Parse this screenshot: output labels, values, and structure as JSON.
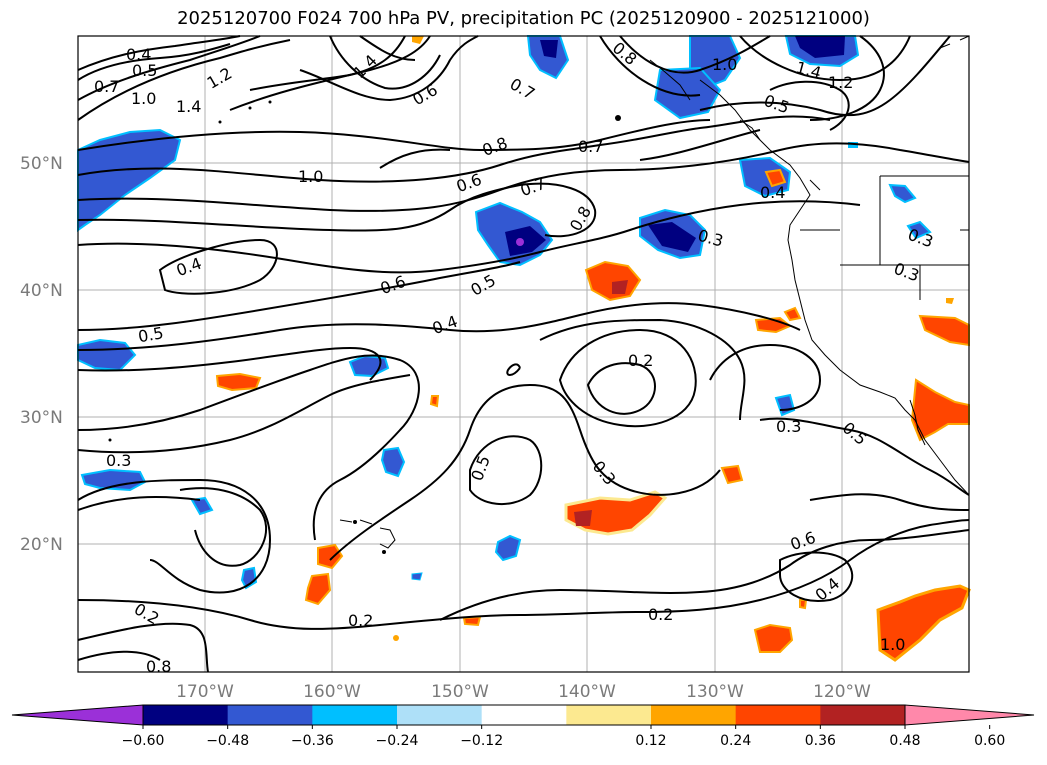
{
  "title": "2025120700 F024 700 hPa PV, precipitation PC (2025120900 - 2025121000)",
  "lat_labels": [
    "50°N",
    "40°N",
    "30°N",
    "20°N"
  ],
  "lon_labels": [
    "170°W",
    "160°W",
    "150°W",
    "140°W",
    "130°W",
    "120°W"
  ],
  "contour_labels": [
    "0.4",
    "0.5",
    "0.7",
    "1.0",
    "1.2",
    "1.4",
    "1.4",
    "0.6",
    "0.7",
    "0.8",
    "0.7",
    "0.6",
    "0.7",
    "0.8",
    "1.0",
    "1.4",
    "1.2",
    "0.5",
    "0.4",
    "0.6",
    "0.5",
    "0.4",
    "0.5",
    "0.3",
    "0.3",
    "0.3",
    "0.3",
    "0.2",
    "0.5",
    "0.3",
    "0.5",
    "0.6",
    "0.4",
    "0.2",
    "0.2",
    "0.3",
    "0.2",
    "0.8",
    "1.0"
  ],
  "colorbar": {
    "ticks": [
      "−0.60",
      "−0.48",
      "−0.36",
      "−0.24",
      "−0.12",
      "0.12",
      "0.24",
      "0.36",
      "0.48",
      "0.60"
    ],
    "colors": [
      "#9b30d8",
      "#000080",
      "#3358d2",
      "#00bfff",
      "#aee0f8",
      "#ffffff",
      "#fce990",
      "#ffa500",
      "#ff4500",
      "#b22222",
      "#ff88aa"
    ]
  },
  "legend_colors": {
    "neg_strong": "#000080",
    "neg_mid": "#3358d2",
    "neg_light": "#00bfff",
    "neg_pale": "#aee0f8",
    "pos_pale": "#fce990",
    "pos_mid": "#ffa500",
    "pos_strong": "#ff4500",
    "pos_dark": "#b22222",
    "pos_pink": "#ff88aa",
    "neg_purple": "#9b30d8"
  }
}
